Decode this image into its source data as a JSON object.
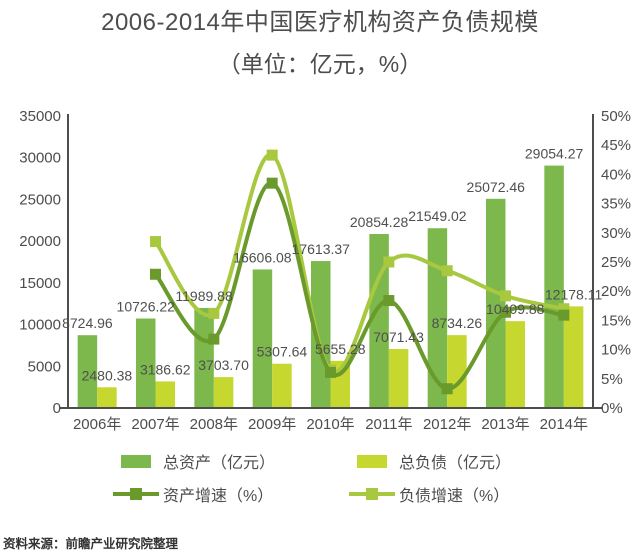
{
  "title": "2006-2014年中国医疗机构资产负债规模",
  "subtitle": "（单位：亿元，%）",
  "source_note": "资料来源：前瞻产业研究院整理",
  "colors": {
    "total_assets_bar": "#7cb84c",
    "total_liabilities_bar": "#c6d72f",
    "asset_growth_line": "#6a9a2b",
    "liability_growth_line": "#a8c83f",
    "axis": "#4d4d4d",
    "tick_text": "#4d4d4d",
    "value_label_text": "#4f4f4f"
  },
  "chart_data": {
    "type": "bar",
    "subtype": "bar-line-combo",
    "title": "2006-2014年中国医疗机构资产负债规模",
    "subtitle": "（单位：亿元，%）",
    "categories": [
      "2006年",
      "2007年",
      "2008年",
      "2009年",
      "2010年",
      "2011年",
      "2012年",
      "2013年",
      "2014年"
    ],
    "series": [
      {
        "key": "total-assets",
        "name": "总资产（亿元）",
        "type": "bar",
        "axis": "left",
        "color": "#7cb84c",
        "values": [
          8724.96,
          10726.22,
          11989.88,
          16606.08,
          17613.37,
          20854.28,
          21549.02,
          25072.46,
          29054.27
        ],
        "labels": [
          "8724.96",
          "10726.22",
          "11989.88",
          "16606.08",
          "17613.37",
          "20854.28",
          "21549.02",
          "25072.46",
          "29054.27"
        ]
      },
      {
        "key": "total-liabilities",
        "name": "总负债（亿元）",
        "type": "bar",
        "axis": "left",
        "color": "#c6d72f",
        "values": [
          2480.38,
          3186.62,
          3703.7,
          5307.64,
          5655.28,
          7071.43,
          8734.26,
          10409.88,
          12178.11
        ],
        "labels": [
          "2480.38",
          "3186.62",
          "3703.70",
          "5307.64",
          "5655.28",
          "7071.43",
          "8734.26",
          "10409.88",
          "12178.11"
        ]
      },
      {
        "key": "asset-growth-rate",
        "name": "资产增速（%）",
        "type": "line",
        "axis": "right",
        "color": "#6a9a2b",
        "values": [
          null,
          22.9,
          11.8,
          38.5,
          6.1,
          18.4,
          3.3,
          16.4,
          15.9
        ]
      },
      {
        "key": "liability-growth-rate",
        "name": "负债增速（%）",
        "type": "line",
        "axis": "right",
        "color": "#a8c83f",
        "values": [
          null,
          28.5,
          16.2,
          43.3,
          6.5,
          25.0,
          23.5,
          19.2,
          17.0
        ]
      }
    ],
    "left_axis": {
      "min": 0,
      "max": 35000,
      "step": 5000,
      "tick_labels": [
        "0",
        "5000",
        "10000",
        "15000",
        "20000",
        "25000",
        "30000",
        "35000"
      ]
    },
    "right_axis": {
      "min": 0,
      "max": 50,
      "step": 5,
      "tick_labels": [
        "0%",
        "5%",
        "10%",
        "15%",
        "20%",
        "25%",
        "30%",
        "35%",
        "40%",
        "45%",
        "50%"
      ]
    },
    "grid": false,
    "legend_position": "bottom"
  }
}
